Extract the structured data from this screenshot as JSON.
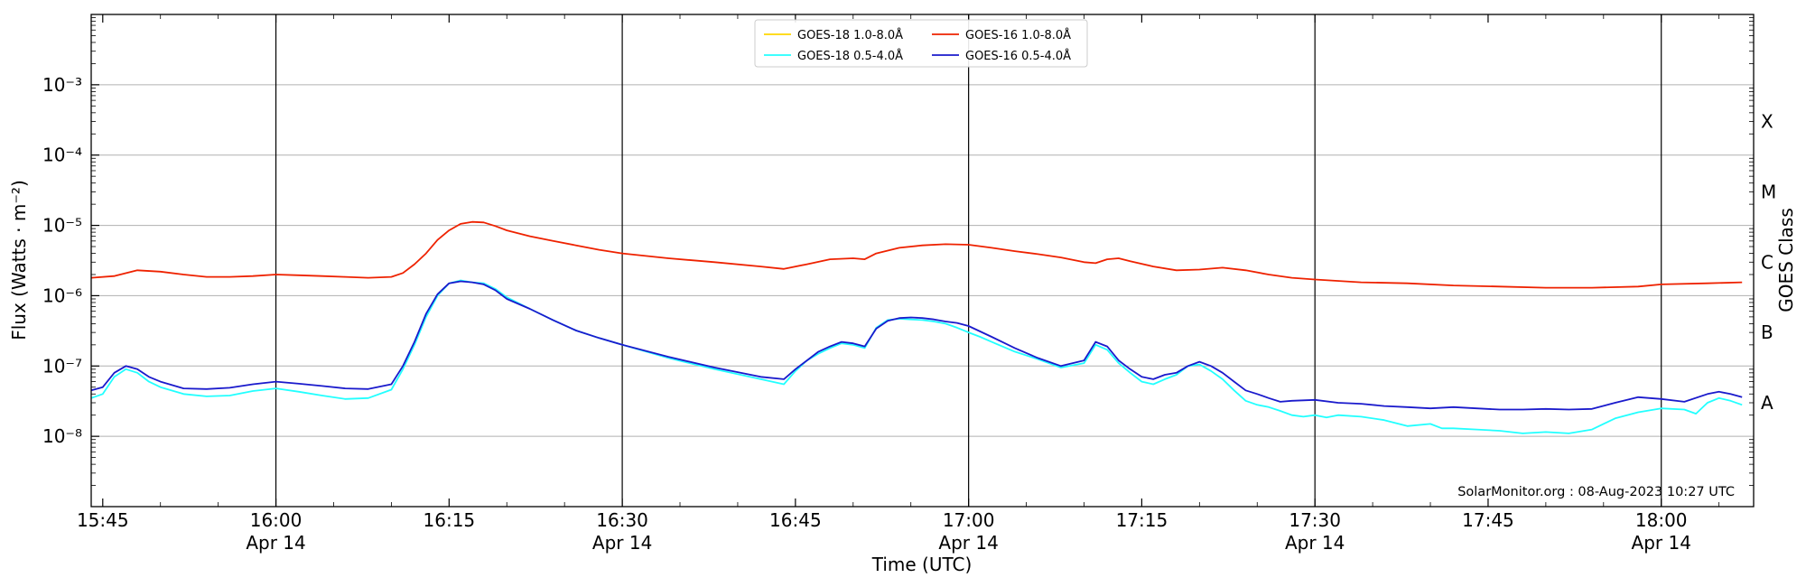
{
  "chart_data": {
    "type": "line",
    "ylabel": "Flux (Watts · m⁻²)",
    "xlabel": "Time (UTC)",
    "right_label": "GOES Class",
    "watermark": "SolarMonitor.org : 08-Aug-2023 10:27 UTC",
    "y_scale": "log",
    "ylim": [
      1e-09,
      0.01
    ],
    "x_unit": "minutes",
    "xlim": [
      944,
      1088
    ],
    "y_ticks": [
      {
        "value": 1e-08,
        "label": "10⁻⁸"
      },
      {
        "value": 1e-07,
        "label": "10⁻⁷"
      },
      {
        "value": 1e-06,
        "label": "10⁻⁶"
      },
      {
        "value": 1e-05,
        "label": "10⁻⁵"
      },
      {
        "value": 0.0001,
        "label": "10⁻⁴"
      },
      {
        "value": 0.001,
        "label": "10⁻³"
      }
    ],
    "class_labels": [
      {
        "value": 3e-08,
        "label": "A"
      },
      {
        "value": 3e-07,
        "label": "B"
      },
      {
        "value": 3e-06,
        "label": "C"
      },
      {
        "value": 3e-05,
        "label": "M"
      },
      {
        "value": 0.0003,
        "label": "X"
      }
    ],
    "x_ticks": [
      {
        "value": 945,
        "label": "15:45",
        "sub": ""
      },
      {
        "value": 960,
        "label": "16:00",
        "sub": "Apr 14",
        "vline": true
      },
      {
        "value": 975,
        "label": "16:15",
        "sub": ""
      },
      {
        "value": 990,
        "label": "16:30",
        "sub": "Apr 14",
        "vline": true
      },
      {
        "value": 1005,
        "label": "16:45",
        "sub": ""
      },
      {
        "value": 1020,
        "label": "17:00",
        "sub": "Apr 14",
        "vline": true
      },
      {
        "value": 1035,
        "label": "17:15",
        "sub": ""
      },
      {
        "value": 1050,
        "label": "17:30",
        "sub": "Apr 14",
        "vline": true
      },
      {
        "value": 1065,
        "label": "17:45",
        "sub": ""
      },
      {
        "value": 1080,
        "label": "18:00",
        "sub": "Apr 14",
        "vline": true
      }
    ],
    "grid": true,
    "legend_position": "top-center",
    "legend_order": [
      0,
      2,
      1,
      3
    ],
    "series": [
      {
        "name": "GOES-18 1.0-8.0Å",
        "color": "#ffd700",
        "x": [],
        "y": []
      },
      {
        "name": "GOES-16 1.0-8.0Å",
        "color": "#ee2200",
        "x": [
          944,
          946,
          948,
          950,
          952,
          954,
          956,
          958,
          960,
          962,
          964,
          966,
          968,
          970,
          971,
          972,
          973,
          974,
          975,
          976,
          977,
          978,
          979,
          980,
          982,
          984,
          986,
          988,
          990,
          994,
          998,
          1002,
          1004,
          1006,
          1008,
          1010,
          1011,
          1012,
          1014,
          1016,
          1018,
          1020,
          1022,
          1024,
          1026,
          1028,
          1030,
          1031,
          1032,
          1033,
          1034,
          1036,
          1038,
          1040,
          1042,
          1044,
          1046,
          1048,
          1050,
          1054,
          1058,
          1062,
          1066,
          1070,
          1074,
          1078,
          1080,
          1084,
          1087
        ],
        "y": [
          1.8e-06,
          1.9e-06,
          2.3e-06,
          2.2e-06,
          2e-06,
          1.85e-06,
          1.85e-06,
          1.9e-06,
          2e-06,
          1.95e-06,
          1.9e-06,
          1.85e-06,
          1.8e-06,
          1.85e-06,
          2.1e-06,
          2.8e-06,
          4e-06,
          6.2e-06,
          8.5e-06,
          1.05e-05,
          1.12e-05,
          1.1e-05,
          9.8e-06,
          8.5e-06,
          7e-06,
          6e-06,
          5.2e-06,
          4.5e-06,
          4e-06,
          3.4e-06,
          3e-06,
          2.6e-06,
          2.4e-06,
          2.8e-06,
          3.3e-06,
          3.4e-06,
          3.3e-06,
          4e-06,
          4.8e-06,
          5.2e-06,
          5.4e-06,
          5.3e-06,
          4.8e-06,
          4.3e-06,
          3.9e-06,
          3.5e-06,
          3e-06,
          2.9e-06,
          3.3e-06,
          3.4e-06,
          3.1e-06,
          2.6e-06,
          2.3e-06,
          2.35e-06,
          2.5e-06,
          2.3e-06,
          2e-06,
          1.8e-06,
          1.7e-06,
          1.55e-06,
          1.5e-06,
          1.4e-06,
          1.35e-06,
          1.3e-06,
          1.3e-06,
          1.35e-06,
          1.45e-06,
          1.5e-06,
          1.55e-06
        ]
      },
      {
        "name": "GOES-18 0.5-4.0Å",
        "color": "#22ffff",
        "x": [
          944,
          945,
          946,
          947,
          948,
          949,
          950,
          952,
          954,
          956,
          958,
          960,
          962,
          964,
          966,
          968,
          970,
          971,
          972,
          973,
          974,
          975,
          976,
          977,
          978,
          979,
          980,
          982,
          984,
          986,
          988,
          990,
          994,
          998,
          1002,
          1004,
          1005,
          1006,
          1007,
          1008,
          1009,
          1010,
          1011,
          1012,
          1013,
          1014,
          1015,
          1016,
          1017,
          1018,
          1019,
          1020,
          1021,
          1022,
          1024,
          1026,
          1028,
          1030,
          1031,
          1032,
          1033,
          1034,
          1035,
          1036,
          1037,
          1038,
          1039,
          1040,
          1041,
          1042,
          1043,
          1044,
          1045,
          1046,
          1047,
          1048,
          1049,
          1050,
          1051,
          1052,
          1054,
          1056,
          1058,
          1060,
          1061,
          1062,
          1064,
          1066,
          1068,
          1070,
          1072,
          1074,
          1076,
          1078,
          1080,
          1082,
          1083,
          1084,
          1085,
          1086,
          1087
        ],
        "y": [
          3.5e-08,
          4e-08,
          7e-08,
          9e-08,
          8e-08,
          6e-08,
          5e-08,
          4e-08,
          3.7e-08,
          3.8e-08,
          4.4e-08,
          4.8e-08,
          4.3e-08,
          3.8e-08,
          3.4e-08,
          3.5e-08,
          4.6e-08,
          9e-08,
          2e-07,
          5e-07,
          1e-06,
          1.5e-06,
          1.65e-06,
          1.55e-06,
          1.5e-06,
          1.25e-06,
          9.5e-07,
          6.5e-07,
          4.5e-07,
          3.2e-07,
          2.5e-07,
          2e-07,
          1.3e-07,
          9e-08,
          6.5e-08,
          5.5e-08,
          8.5e-08,
          1.2e-07,
          1.5e-07,
          1.8e-07,
          2.1e-07,
          2e-07,
          1.8e-07,
          3.5e-07,
          4.5e-07,
          4.7e-07,
          4.6e-07,
          4.5e-07,
          4.3e-07,
          4e-07,
          3.5e-07,
          3e-07,
          2.6e-07,
          2.2e-07,
          1.6e-07,
          1.25e-07,
          9.5e-08,
          1.1e-07,
          2e-07,
          1.7e-07,
          1.1e-07,
          8e-08,
          6e-08,
          5.5e-08,
          6.5e-08,
          7.5e-08,
          1e-07,
          1.05e-07,
          8.5e-08,
          6.5e-08,
          4.5e-08,
          3.2e-08,
          2.8e-08,
          2.6e-08,
          2.3e-08,
          2e-08,
          1.9e-08,
          2e-08,
          1.85e-08,
          2e-08,
          1.9e-08,
          1.7e-08,
          1.4e-08,
          1.5e-08,
          1.3e-08,
          1.3e-08,
          1.25e-08,
          1.2e-08,
          1.1e-08,
          1.15e-08,
          1.1e-08,
          1.25e-08,
          1.8e-08,
          2.2e-08,
          2.5e-08,
          2.4e-08,
          2.1e-08,
          3e-08,
          3.5e-08,
          3.2e-08,
          2.8e-08
        ]
      },
      {
        "name": "GOES-16 0.5-4.0Å",
        "color": "#1a1acc",
        "x": [
          944,
          945,
          946,
          947,
          948,
          949,
          950,
          952,
          954,
          956,
          958,
          960,
          962,
          964,
          966,
          968,
          970,
          971,
          972,
          973,
          974,
          975,
          976,
          977,
          978,
          979,
          980,
          982,
          984,
          986,
          988,
          990,
          994,
          998,
          1002,
          1004,
          1005,
          1006,
          1007,
          1008,
          1009,
          1010,
          1011,
          1012,
          1013,
          1014,
          1015,
          1016,
          1017,
          1018,
          1019,
          1020,
          1021,
          1022,
          1024,
          1026,
          1028,
          1030,
          1031,
          1032,
          1033,
          1034,
          1035,
          1036,
          1037,
          1038,
          1039,
          1040,
          1041,
          1042,
          1043,
          1044,
          1045,
          1046,
          1047,
          1048,
          1050,
          1052,
          1054,
          1056,
          1058,
          1060,
          1062,
          1064,
          1066,
          1068,
          1070,
          1072,
          1074,
          1076,
          1078,
          1080,
          1082,
          1084,
          1085,
          1086,
          1087
        ],
        "y": [
          4.5e-08,
          5e-08,
          8e-08,
          1e-07,
          9e-08,
          7e-08,
          6e-08,
          4.8e-08,
          4.7e-08,
          4.9e-08,
          5.5e-08,
          6e-08,
          5.6e-08,
          5.2e-08,
          4.8e-08,
          4.7e-08,
          5.5e-08,
          1e-07,
          2.2e-07,
          5.5e-07,
          1.05e-06,
          1.5e-06,
          1.6e-06,
          1.55e-06,
          1.45e-06,
          1.2e-06,
          9e-07,
          6.5e-07,
          4.5e-07,
          3.2e-07,
          2.5e-07,
          2e-07,
          1.35e-07,
          9.5e-08,
          7e-08,
          6.5e-08,
          9e-08,
          1.2e-07,
          1.6e-07,
          1.9e-07,
          2.2e-07,
          2.1e-07,
          1.9e-07,
          3.4e-07,
          4.4e-07,
          4.8e-07,
          4.9e-07,
          4.8e-07,
          4.6e-07,
          4.3e-07,
          4.1e-07,
          3.7e-07,
          3.1e-07,
          2.6e-07,
          1.8e-07,
          1.3e-07,
          1e-07,
          1.2e-07,
          2.2e-07,
          1.9e-07,
          1.2e-07,
          9e-08,
          7e-08,
          6.5e-08,
          7.5e-08,
          8e-08,
          1e-07,
          1.15e-07,
          1e-07,
          8e-08,
          6e-08,
          4.5e-08,
          4e-08,
          3.5e-08,
          3.1e-08,
          3.2e-08,
          3.3e-08,
          3e-08,
          2.9e-08,
          2.7e-08,
          2.6e-08,
          2.5e-08,
          2.6e-08,
          2.5e-08,
          2.4e-08,
          2.4e-08,
          2.45e-08,
          2.4e-08,
          2.45e-08,
          3e-08,
          3.6e-08,
          3.4e-08,
          3.1e-08,
          4e-08,
          4.3e-08,
          4e-08,
          3.6e-08
        ]
      }
    ]
  }
}
